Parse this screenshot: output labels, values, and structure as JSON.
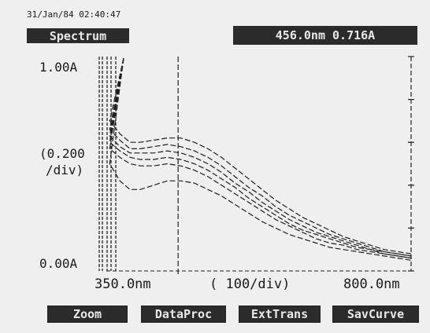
{
  "header": {
    "timestamp": "31/Jan/84 02:40:47",
    "mode_label": "Spectrum",
    "cursor_readout": "456.0nm   0.716A"
  },
  "chart_data": {
    "type": "line",
    "title": "",
    "xlabel": "( 100/div)",
    "ylabel": "(0.200 /div)",
    "ylabel_line1": "(0.200",
    "ylabel_line2": "/div)",
    "xlim": [
      350,
      800
    ],
    "ylim": [
      0,
      1
    ],
    "x_tick_labels": [
      "350.0nm",
      "800.0nm"
    ],
    "y_tick_labels": [
      "1.00A",
      "0.00A"
    ],
    "cursor_x": 456,
    "grid": false,
    "series": [
      {
        "x": [
          355,
          370,
          385,
          400,
          420,
          440,
          460,
          480,
          500,
          520,
          540,
          560,
          580,
          600,
          620,
          640,
          660,
          680,
          700,
          720,
          740,
          760,
          780,
          800
        ],
        "values": [
          0.7,
          0.64,
          0.6,
          0.6,
          0.61,
          0.62,
          0.62,
          0.6,
          0.57,
          0.53,
          0.48,
          0.43,
          0.38,
          0.33,
          0.29,
          0.25,
          0.22,
          0.19,
          0.16,
          0.14,
          0.12,
          0.1,
          0.09,
          0.08
        ]
      },
      {
        "x": [
          355,
          370,
          385,
          400,
          420,
          440,
          460,
          480,
          500,
          520,
          540,
          560,
          580,
          600,
          620,
          640,
          660,
          680,
          700,
          720,
          740,
          760,
          780,
          800
        ],
        "values": [
          0.66,
          0.61,
          0.57,
          0.57,
          0.58,
          0.59,
          0.58,
          0.56,
          0.53,
          0.49,
          0.44,
          0.39,
          0.35,
          0.3,
          0.26,
          0.23,
          0.2,
          0.17,
          0.15,
          0.13,
          0.11,
          0.09,
          0.08,
          0.07
        ]
      },
      {
        "x": [
          355,
          370,
          385,
          400,
          420,
          440,
          460,
          480,
          500,
          520,
          540,
          560,
          580,
          600,
          620,
          640,
          660,
          680,
          700,
          720,
          740,
          760,
          780,
          800
        ],
        "values": [
          0.63,
          0.58,
          0.55,
          0.55,
          0.55,
          0.56,
          0.55,
          0.53,
          0.5,
          0.46,
          0.41,
          0.37,
          0.32,
          0.28,
          0.24,
          0.21,
          0.18,
          0.16,
          0.14,
          0.12,
          0.1,
          0.09,
          0.08,
          0.07
        ]
      },
      {
        "x": [
          355,
          370,
          385,
          400,
          420,
          440,
          460,
          480,
          500,
          520,
          540,
          560,
          580,
          600,
          620,
          640,
          660,
          680,
          700,
          720,
          740,
          760,
          780,
          800
        ],
        "values": [
          0.6,
          0.56,
          0.53,
          0.52,
          0.52,
          0.53,
          0.52,
          0.5,
          0.47,
          0.43,
          0.39,
          0.34,
          0.3,
          0.26,
          0.22,
          0.19,
          0.17,
          0.15,
          0.13,
          0.11,
          0.1,
          0.08,
          0.07,
          0.06
        ]
      },
      {
        "x": [
          355,
          370,
          385,
          400,
          420,
          440,
          460,
          480,
          500,
          520,
          540,
          560,
          580,
          600,
          620,
          640,
          660,
          680,
          700,
          720,
          740,
          760,
          780,
          800
        ],
        "values": [
          0.57,
          0.53,
          0.5,
          0.49,
          0.49,
          0.5,
          0.49,
          0.47,
          0.44,
          0.4,
          0.36,
          0.32,
          0.28,
          0.24,
          0.21,
          0.18,
          0.15,
          0.13,
          0.12,
          0.1,
          0.09,
          0.08,
          0.07,
          0.06
        ]
      },
      {
        "x": [
          355,
          370,
          385,
          400,
          420,
          440,
          460,
          480,
          500,
          520,
          540,
          560,
          580,
          600,
          620,
          640,
          660,
          680,
          700,
          720,
          740,
          760,
          780,
          800
        ],
        "values": [
          0.5,
          0.42,
          0.38,
          0.38,
          0.4,
          0.42,
          0.42,
          0.41,
          0.38,
          0.35,
          0.31,
          0.27,
          0.23,
          0.2,
          0.17,
          0.15,
          0.13,
          0.11,
          0.1,
          0.09,
          0.08,
          0.07,
          0.06,
          0.05
        ]
      }
    ]
  },
  "softkeys": [
    "Zoom",
    "DataProc",
    "ExtTrans",
    "SavCurve"
  ]
}
